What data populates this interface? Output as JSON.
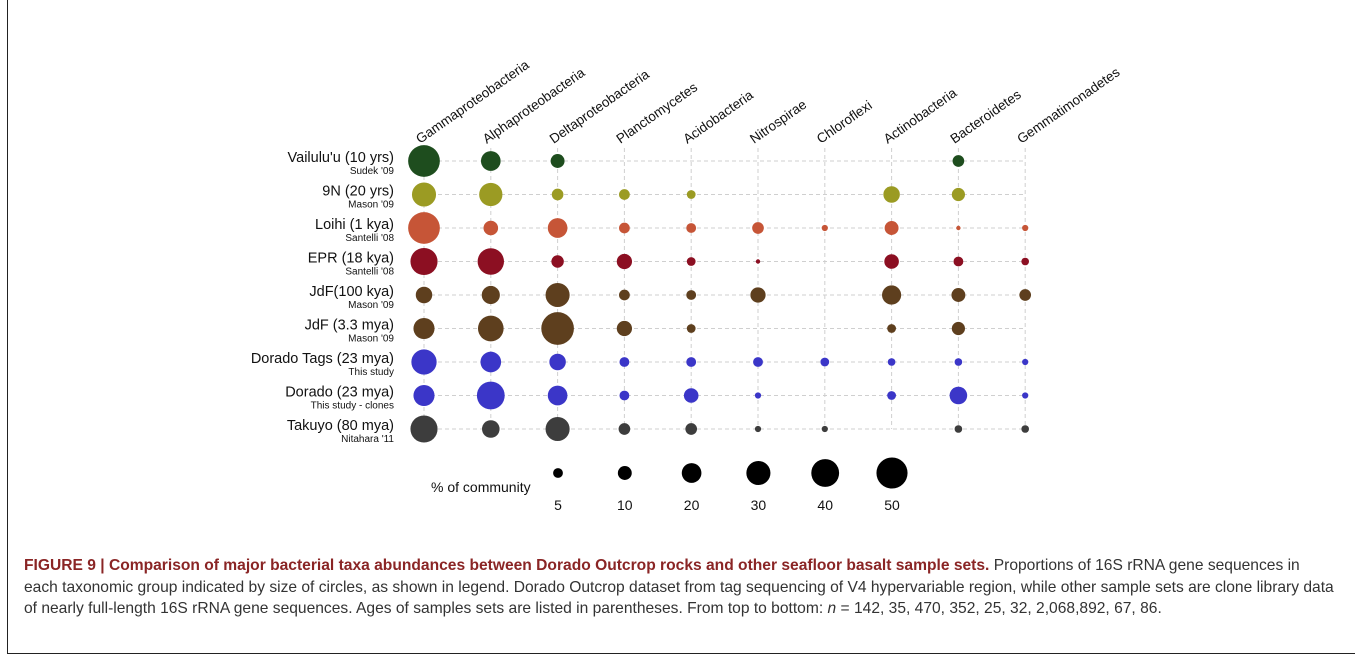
{
  "chart_data": {
    "type": "bubble-matrix",
    "title": "",
    "columns": [
      "Gammaproteobacteria",
      "Alphaproteobacteria",
      "Deltaproteobacteria",
      "Planctomycetes",
      "Acidobacteria",
      "Nitrospirae",
      "Chloroflexi",
      "Actinobacteria",
      "Bacteroidetes",
      "Gemmatimonadetes"
    ],
    "rows": [
      {
        "name": "Vailulu'u (10 yrs)",
        "source": "Sudek '09",
        "color": "#1e4d1e",
        "values": [
          52,
          20,
          10,
          0,
          0,
          0,
          0,
          0,
          7,
          0
        ]
      },
      {
        "name": "9N (20 yrs)",
        "source": "Mason '09",
        "color": "#9b9b23",
        "values": [
          30,
          28,
          7,
          6,
          4,
          0,
          0,
          14,
          9,
          0
        ]
      },
      {
        "name": "Loihi (1 kya)",
        "source": "Santelli '08",
        "color": "#c65537",
        "values": [
          52,
          11,
          20,
          6,
          5,
          7,
          2,
          10,
          1,
          2
        ]
      },
      {
        "name": "EPR (18 kya)",
        "source": "Santelli '08",
        "color": "#8c0f22",
        "values": [
          38,
          36,
          8,
          12,
          4,
          1,
          0,
          11,
          5,
          3
        ]
      },
      {
        "name": "JdF(100 kya)",
        "source": "Mason '09",
        "color": "#5e3f1e",
        "values": [
          14,
          17,
          30,
          6,
          5,
          12,
          0,
          19,
          10,
          7
        ]
      },
      {
        "name": "JdF (3.3 mya)",
        "source": "Mason '09",
        "color": "#5e3f1e",
        "values": [
          23,
          34,
          55,
          12,
          4,
          0,
          0,
          4,
          9,
          0
        ]
      },
      {
        "name": "Dorado Tags (23 mya)",
        "source": "This study",
        "color": "#3b36c8",
        "values": [
          33,
          22,
          14,
          5,
          5,
          5,
          4,
          3,
          3,
          2
        ]
      },
      {
        "name": "Dorado (23 mya)",
        "source": "This study - clones",
        "color": "#3b36c8",
        "values": [
          23,
          40,
          20,
          5,
          11,
          2,
          0,
          4,
          16,
          2
        ]
      },
      {
        "name": "Takuyo (80 mya)",
        "source": "Nitahara '11",
        "color": "#3d3d3d",
        "values": [
          38,
          16,
          30,
          7,
          7,
          2,
          2,
          0,
          3,
          3
        ]
      }
    ],
    "legend": {
      "label": "% of community",
      "sizes": [
        5,
        10,
        20,
        30,
        40,
        50
      ]
    }
  },
  "caption": {
    "figure_label": "FIGURE 9 | ",
    "title": "Comparison of major bacterial taxa abundances between Dorado Outcrop rocks and other seafloor basalt sample sets.",
    "text_before_n": " Proportions of 16S rRNA gene sequences in each taxonomic group indicated by size of circles, as shown in legend. Dorado Outcrop dataset from tag sequencing of V4 hypervariable region, while other sample sets are clone library data of nearly full-length 16S rRNA gene sequences. Ages of samples sets are listed in parentheses. From top to bottom: ",
    "n_symbol": "n",
    "text_after_n": " = 142, 35, 470, 352, 25, 32, 2,068,892, 67, 86."
  }
}
